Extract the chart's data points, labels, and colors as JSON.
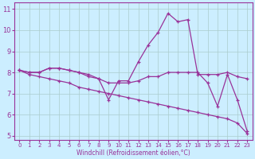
{
  "line1": {
    "x": [
      0,
      1,
      2,
      3,
      4,
      5,
      6,
      7,
      8,
      9,
      10,
      11,
      12,
      13,
      14,
      15,
      16,
      17,
      18,
      19,
      20,
      21,
      22,
      23
    ],
    "y": [
      8.1,
      8.0,
      8.0,
      8.2,
      8.2,
      8.1,
      8.0,
      7.8,
      7.7,
      6.7,
      7.6,
      7.6,
      8.5,
      9.3,
      9.9,
      10.8,
      10.4,
      10.5,
      7.9,
      7.9,
      7.9,
      8.0,
      7.8,
      7.7
    ]
  },
  "line2": {
    "x": [
      0,
      1,
      2,
      3,
      4,
      5,
      6,
      7,
      8,
      9,
      10,
      11,
      12,
      13,
      14,
      15,
      16,
      17,
      18,
      19,
      20,
      21,
      22,
      23
    ],
    "y": [
      8.1,
      8.0,
      8.0,
      8.2,
      8.2,
      8.1,
      8.0,
      7.9,
      7.7,
      7.5,
      7.5,
      7.5,
      7.6,
      7.8,
      7.8,
      8.0,
      8.0,
      8.0,
      8.0,
      7.5,
      6.4,
      7.9,
      6.7,
      5.2
    ]
  },
  "line3": {
    "x": [
      0,
      1,
      2,
      3,
      4,
      5,
      6,
      7,
      8,
      9,
      10,
      11,
      12,
      13,
      14,
      15,
      16,
      17,
      18,
      19,
      20,
      21,
      22,
      23
    ],
    "y": [
      8.1,
      7.9,
      7.8,
      7.7,
      7.6,
      7.5,
      7.3,
      7.2,
      7.1,
      7.0,
      6.9,
      6.8,
      6.7,
      6.6,
      6.5,
      6.4,
      6.3,
      6.2,
      6.1,
      6.0,
      5.9,
      5.8,
      5.6,
      5.1
    ]
  },
  "color": "#993399",
  "bg_color": "#cceeff",
  "grid_color": "#aacccc",
  "xlabel": "Windchill (Refroidissement éolien,°C)",
  "xlim": [
    -0.5,
    23.5
  ],
  "ylim": [
    4.8,
    11.3
  ],
  "yticks": [
    5,
    6,
    7,
    8,
    9,
    10,
    11
  ],
  "xticks": [
    0,
    1,
    2,
    3,
    4,
    5,
    6,
    7,
    8,
    9,
    10,
    11,
    12,
    13,
    14,
    15,
    16,
    17,
    18,
    19,
    20,
    21,
    22,
    23
  ],
  "marker": "+",
  "markersize": 3.5,
  "linewidth": 0.9
}
